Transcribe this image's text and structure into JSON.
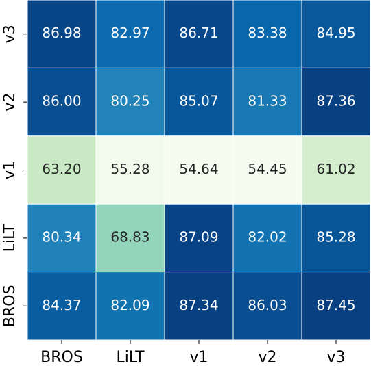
{
  "chart_data": {
    "type": "heatmap",
    "x_categories": [
      "BROS",
      "LiLT",
      "v1",
      "v2",
      "v3"
    ],
    "y_categories": [
      "v3",
      "v2",
      "v1",
      "LiLT",
      "BROS"
    ],
    "values": [
      [
        86.98,
        82.97,
        86.71,
        83.38,
        84.95
      ],
      [
        86.0,
        80.25,
        85.07,
        81.33,
        87.36
      ],
      [
        63.2,
        55.28,
        54.64,
        54.45,
        61.02
      ],
      [
        80.34,
        68.83,
        87.09,
        82.02,
        85.28
      ],
      [
        84.37,
        82.09,
        87.34,
        86.03,
        87.45
      ]
    ],
    "value_labels": [
      [
        "86.98",
        "82.97",
        "86.71",
        "83.38",
        "84.95"
      ],
      [
        "86.00",
        "80.25",
        "85.07",
        "81.33",
        "87.36"
      ],
      [
        "63.20",
        "55.28",
        "54.64",
        "54.45",
        "61.02"
      ],
      [
        "80.34",
        "68.83",
        "87.09",
        "82.02",
        "85.28"
      ],
      [
        "84.37",
        "82.09",
        "87.34",
        "86.03",
        "87.45"
      ]
    ],
    "colormap": [
      "#f7fcf0",
      "#e0f3db",
      "#ccebc5",
      "#a8ddb5",
      "#7bccc4",
      "#4eb3d3",
      "#2b8cbe",
      "#0868ac",
      "#084081"
    ]
  }
}
